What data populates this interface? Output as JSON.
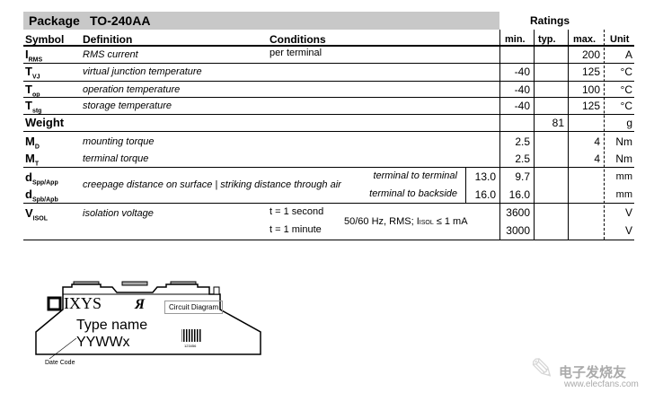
{
  "package": {
    "label": "Package",
    "name": "TO-240AA"
  },
  "ratings_label": "Ratings",
  "headers": {
    "symbol": "Symbol",
    "definition": "Definition",
    "conditions": "Conditions",
    "min": "min.",
    "typ": "typ.",
    "max": "max.",
    "unit": "Unit"
  },
  "rows": [
    {
      "sym": "I",
      "sub": "RMS",
      "def": "RMS current",
      "cond": "per terminal",
      "min": "",
      "typ": "",
      "max": "200",
      "unit": "A"
    },
    {
      "sym": "T",
      "sub": "VJ",
      "def": "virtual junction temperature",
      "cond": "",
      "min": "-40",
      "typ": "",
      "max": "125",
      "unit": "°C"
    },
    {
      "sym": "T",
      "sub": "op",
      "def": "operation temperature",
      "cond": "",
      "min": "-40",
      "typ": "",
      "max": "100",
      "unit": "°C"
    },
    {
      "sym": "T",
      "sub": "stg",
      "def": "storage temperature",
      "cond": "",
      "min": "-40",
      "typ": "",
      "max": "125",
      "unit": "°C"
    },
    {
      "sym": "Weight",
      "sub": "",
      "def": "",
      "cond": "",
      "min": "",
      "typ": "81",
      "max": "",
      "unit": "g"
    },
    {
      "sym": "M",
      "sub": "D",
      "def": "mounting torque",
      "cond": "",
      "min": "2.5",
      "typ": "",
      "max": "4",
      "unit": "Nm"
    },
    {
      "sym": "M",
      "sub": "T",
      "def": "terminal torque",
      "cond": "",
      "min": "2.5",
      "typ": "",
      "max": "4",
      "unit": "Nm"
    }
  ],
  "creepage": {
    "sym1": "d",
    "sub1": "Spp/App",
    "sym2": "d",
    "sub2": "Spb/Apb",
    "def": "creepage distance on surface | striking distance through air",
    "r1": {
      "cond": "terminal to terminal",
      "creep": "13.0",
      "min": "9.7",
      "unit": "mm"
    },
    "r2": {
      "cond": "terminal to backside",
      "creep": "16.0",
      "min": "16.0",
      "unit": "mm"
    }
  },
  "isol": {
    "sym": "V",
    "sub": "ISOL",
    "def": "isolation voltage",
    "cond1": "t = 1 second",
    "cond2": "t = 1 minute",
    "cond_common": "50/60 Hz, RMS; I",
    "cond_sub": "ISOL",
    "cond_tail": " ≤ 1 mA",
    "min1": "3600",
    "min2": "3000",
    "unit1": "V",
    "unit2": "V"
  },
  "drawing": {
    "logo": "IXYS",
    "type_name": "Type name",
    "date_field": "YYWWx",
    "circuit": "Circuit Diagram",
    "barcode_num": "123456",
    "date_code_label": "Date Code"
  },
  "watermark": {
    "text": "电子发烧友",
    "url": "www.elecfans.com"
  }
}
